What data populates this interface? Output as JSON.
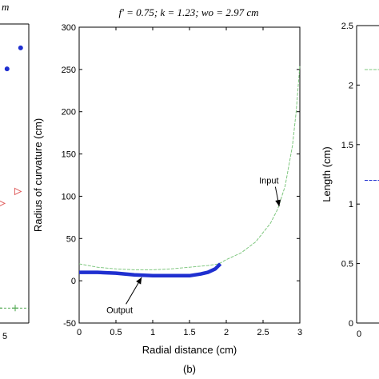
{
  "chart_data": [
    {
      "panel": "left-partial",
      "type": "scatter",
      "partial_text": "m",
      "edge_tick_label": "5",
      "series": [
        {
          "marker": "filled-circle",
          "color": "#1f2fd0",
          "points": [
            [
              4.2,
              0.85
            ],
            [
              4.7,
              0.92
            ]
          ]
        },
        {
          "marker": "open-triangle-right",
          "color": "#e06060",
          "points": [
            [
              4.0,
              0.4
            ],
            [
              4.6,
              0.44
            ]
          ]
        },
        {
          "marker": "plus",
          "color": "#40a040",
          "points": [
            [
              3.9,
              0.05
            ],
            [
              4.5,
              0.05
            ]
          ]
        }
      ]
    },
    {
      "panel": "center",
      "type": "line",
      "title": "f' = 0.75; k = 1.23; wo = 2.97 cm",
      "xlabel": "Radial distance (cm)",
      "ylabel": "Radius of curvature (cm)",
      "caption": "(b)",
      "xlim": [
        0,
        3
      ],
      "ylim": [
        -50,
        300
      ],
      "xticks": [
        "0",
        "0.5",
        "1",
        "1.5",
        "2",
        "2.5",
        "3"
      ],
      "yticks": [
        "-50",
        "0",
        "50",
        "100",
        "150",
        "200",
        "250",
        "300"
      ],
      "series": [
        {
          "name": "Input",
          "color": "#7fc77f",
          "x": [
            0,
            0.25,
            0.5,
            0.75,
            1.0,
            1.25,
            1.5,
            1.75,
            1.9,
            2.0,
            2.2,
            2.4,
            2.6,
            2.7,
            2.8,
            2.9,
            2.95,
            3.0
          ],
          "y": [
            20,
            16,
            14,
            13,
            13,
            14,
            16,
            18,
            20,
            25,
            33,
            46,
            68,
            85,
            112,
            160,
            200,
            255
          ]
        },
        {
          "name": "Output",
          "color": "#1f2fd0",
          "x": [
            0,
            0.25,
            0.5,
            0.75,
            1.0,
            1.25,
            1.5,
            1.65,
            1.75,
            1.85,
            1.92
          ],
          "y": [
            10,
            10,
            9,
            7,
            6,
            6,
            6,
            8,
            10,
            14,
            20
          ]
        }
      ],
      "annotations": [
        {
          "text": "Input",
          "x": 2.58,
          "y": 115,
          "arrow_to": [
            2.72,
            88
          ]
        },
        {
          "text": "Output",
          "x": 0.55,
          "y": -38,
          "arrow_to": [
            0.85,
            4
          ]
        }
      ]
    },
    {
      "panel": "right-partial",
      "type": "line",
      "ylabel": "Length (cm)",
      "ylim": [
        0,
        2.5
      ],
      "yticks": [
        "0",
        "0.5",
        "1",
        "1.5",
        "2",
        "2.5"
      ],
      "edge_tick_label": "0",
      "series": [
        {
          "color": "#7fc77f",
          "y_level": 2.13
        },
        {
          "color": "#1f2fd0",
          "y_level": 1.2
        }
      ]
    }
  ]
}
